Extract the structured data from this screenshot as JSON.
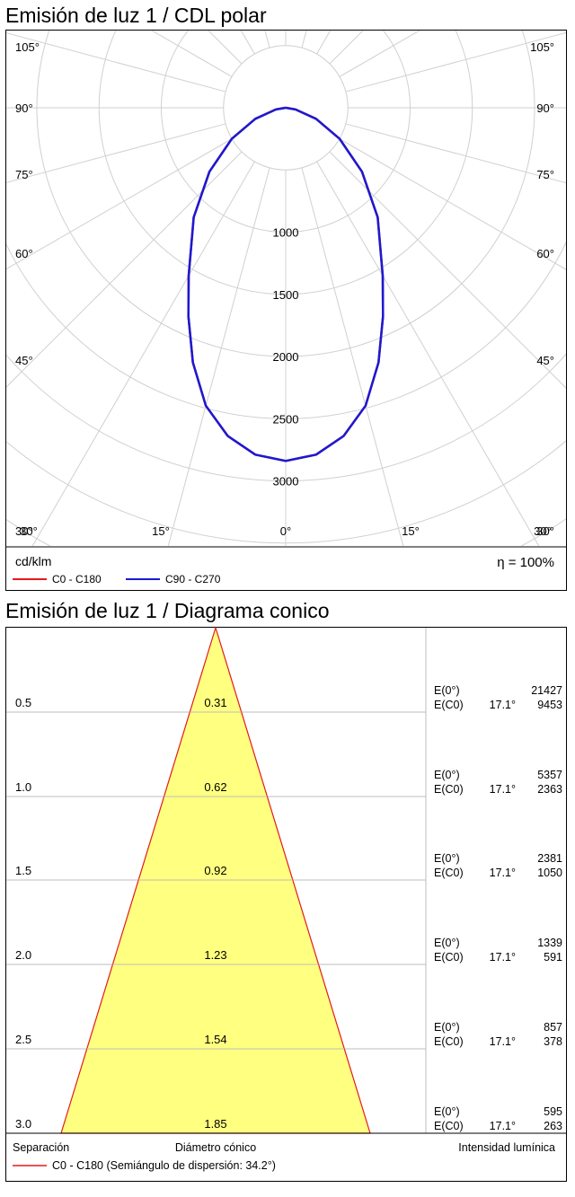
{
  "chart_data": [
    {
      "type": "polar",
      "title": "Emisión de luz 1 / CDL polar",
      "unit": "cd/klm",
      "efficiency": "η = 100%",
      "angle_labels_left": [
        "105°",
        "90°",
        "75°",
        "60°",
        "45°",
        "30°"
      ],
      "angle_labels_right": [
        "105°",
        "90°",
        "75°",
        "60°",
        "45°",
        "30°"
      ],
      "angle_labels_bottom": [
        "30°",
        "15°",
        "0°",
        "15°",
        "30°"
      ],
      "radial_labels": [
        "1000",
        "1500",
        "2000",
        "2500",
        "3000"
      ],
      "series": [
        {
          "name": "C0 - C180",
          "color": "#e41a1c",
          "angles": [
            0,
            5,
            10,
            15,
            20,
            25,
            30,
            40,
            50,
            60,
            70,
            80,
            90
          ],
          "values": [
            2840,
            2800,
            2680,
            2480,
            2180,
            1850,
            1560,
            1150,
            800,
            500,
            260,
            80,
            0
          ]
        },
        {
          "name": "C90 - C270",
          "color": "#1a1ad4",
          "angles": [
            0,
            5,
            10,
            15,
            20,
            25,
            30,
            40,
            50,
            60,
            70,
            80,
            90
          ],
          "values": [
            2840,
            2800,
            2680,
            2480,
            2180,
            1850,
            1560,
            1150,
            800,
            500,
            260,
            80,
            0
          ]
        }
      ]
    },
    {
      "type": "table",
      "title": "Emisión de luz 1 / Diagrama conico",
      "rows": [
        {
          "distance": "0.5",
          "diameter": "0.31",
          "e0_label": "E(0°)",
          "e0": "21427",
          "ec0_label": "E(C0)",
          "ec0_angle": "17.1°",
          "ec0": "9453"
        },
        {
          "distance": "1.0",
          "diameter": "0.62",
          "e0_label": "E(0°)",
          "e0": "5357",
          "ec0_label": "E(C0)",
          "ec0_angle": "17.1°",
          "ec0": "2363"
        },
        {
          "distance": "1.5",
          "diameter": "0.92",
          "e0_label": "E(0°)",
          "e0": "2381",
          "ec0_label": "E(C0)",
          "ec0_angle": "17.1°",
          "ec0": "1050"
        },
        {
          "distance": "2.0",
          "diameter": "1.23",
          "e0_label": "E(0°)",
          "e0": "1339",
          "ec0_label": "E(C0)",
          "ec0_angle": "17.1°",
          "ec0": "591"
        },
        {
          "distance": "2.5",
          "diameter": "1.54",
          "e0_label": "E(0°)",
          "e0": "857",
          "ec0_label": "E(C0)",
          "ec0_angle": "17.1°",
          "ec0": "378"
        },
        {
          "distance": "3.0",
          "diameter": "1.85",
          "e0_label": "E(0°)",
          "e0": "595",
          "ec0_label": "E(C0)",
          "ec0_angle": "17.1°",
          "ec0": "263"
        }
      ],
      "footer": {
        "separation": "Separación",
        "diameter": "Diámetro cónico",
        "intensity": "Intensidad lumínica",
        "legend": "C0 - C180 (Semiángulo de dispersión: 34.2°)"
      },
      "cone_color": "#ffff80",
      "cone_edge_color": "#e41a1c"
    }
  ]
}
